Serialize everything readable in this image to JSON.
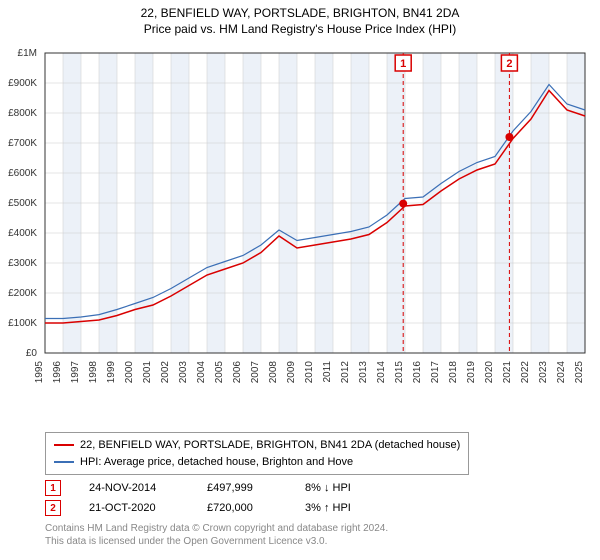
{
  "title_line1": "22, BENFIELD WAY, PORTSLADE, BRIGHTON, BN41 2DA",
  "title_line2": "Price paid vs. HM Land Registry's House Price Index (HPI)",
  "chart": {
    "type": "line",
    "background_color": "#ffffff",
    "grid_color": "#cccccc",
    "axis_color": "#333333",
    "title_fontsize": 12,
    "label_fontsize": 10,
    "x_years": [
      1995,
      1996,
      1997,
      1998,
      1999,
      2000,
      2001,
      2002,
      2003,
      2004,
      2005,
      2006,
      2007,
      2008,
      2009,
      2010,
      2011,
      2012,
      2013,
      2014,
      2015,
      2016,
      2017,
      2018,
      2019,
      2020,
      2021,
      2022,
      2023,
      2024,
      2025
    ],
    "ylim": [
      0,
      1000000
    ],
    "ytick_step": 100000,
    "ytick_labels": [
      "£0",
      "£100K",
      "£200K",
      "£300K",
      "£400K",
      "£500K",
      "£600K",
      "£700K",
      "£800K",
      "£900K",
      "£1M"
    ],
    "series": [
      {
        "name": "property",
        "label": "22, BENFIELD WAY, PORTSLADE, BRIGHTON, BN41 2DA (detached house)",
        "color": "#d90000",
        "line_width": 1.5,
        "values": [
          100,
          100,
          105,
          110,
          125,
          145,
          160,
          190,
          225,
          260,
          280,
          300,
          335,
          390,
          350,
          360,
          370,
          380,
          395,
          435,
          490,
          495,
          540,
          580,
          610,
          630,
          715,
          780,
          875,
          810,
          790
        ]
      },
      {
        "name": "hpi",
        "label": "HPI: Average price, detached house, Brighton and Hove",
        "color": "#3b6fb6",
        "line_width": 1.2,
        "values": [
          115,
          115,
          120,
          128,
          145,
          165,
          185,
          215,
          250,
          285,
          305,
          325,
          360,
          410,
          375,
          385,
          395,
          405,
          420,
          460,
          515,
          520,
          565,
          605,
          635,
          655,
          740,
          805,
          895,
          830,
          810
        ]
      }
    ],
    "shaded_alt_years": true,
    "shade_color": "rgba(200,215,235,0.35)",
    "transactions": [
      {
        "id": "1",
        "year_frac": 2014.9,
        "date": "24-NOV-2014",
        "price_label": "£497,999",
        "price_value": 497999,
        "delta_label": "8% ↓ HPI",
        "marker_color": "#d90000"
      },
      {
        "id": "2",
        "year_frac": 2020.8,
        "date": "21-OCT-2020",
        "price_label": "£720,000",
        "price_value": 720000,
        "delta_label": "3% ↑ HPI",
        "marker_color": "#d90000"
      }
    ],
    "tx_line_color": "#d90000",
    "tx_line_dash": "4,3"
  },
  "footer_line1": "Contains HM Land Registry data © Crown copyright and database right 2024.",
  "footer_line2": "This data is licensed under the Open Government Licence v3.0."
}
